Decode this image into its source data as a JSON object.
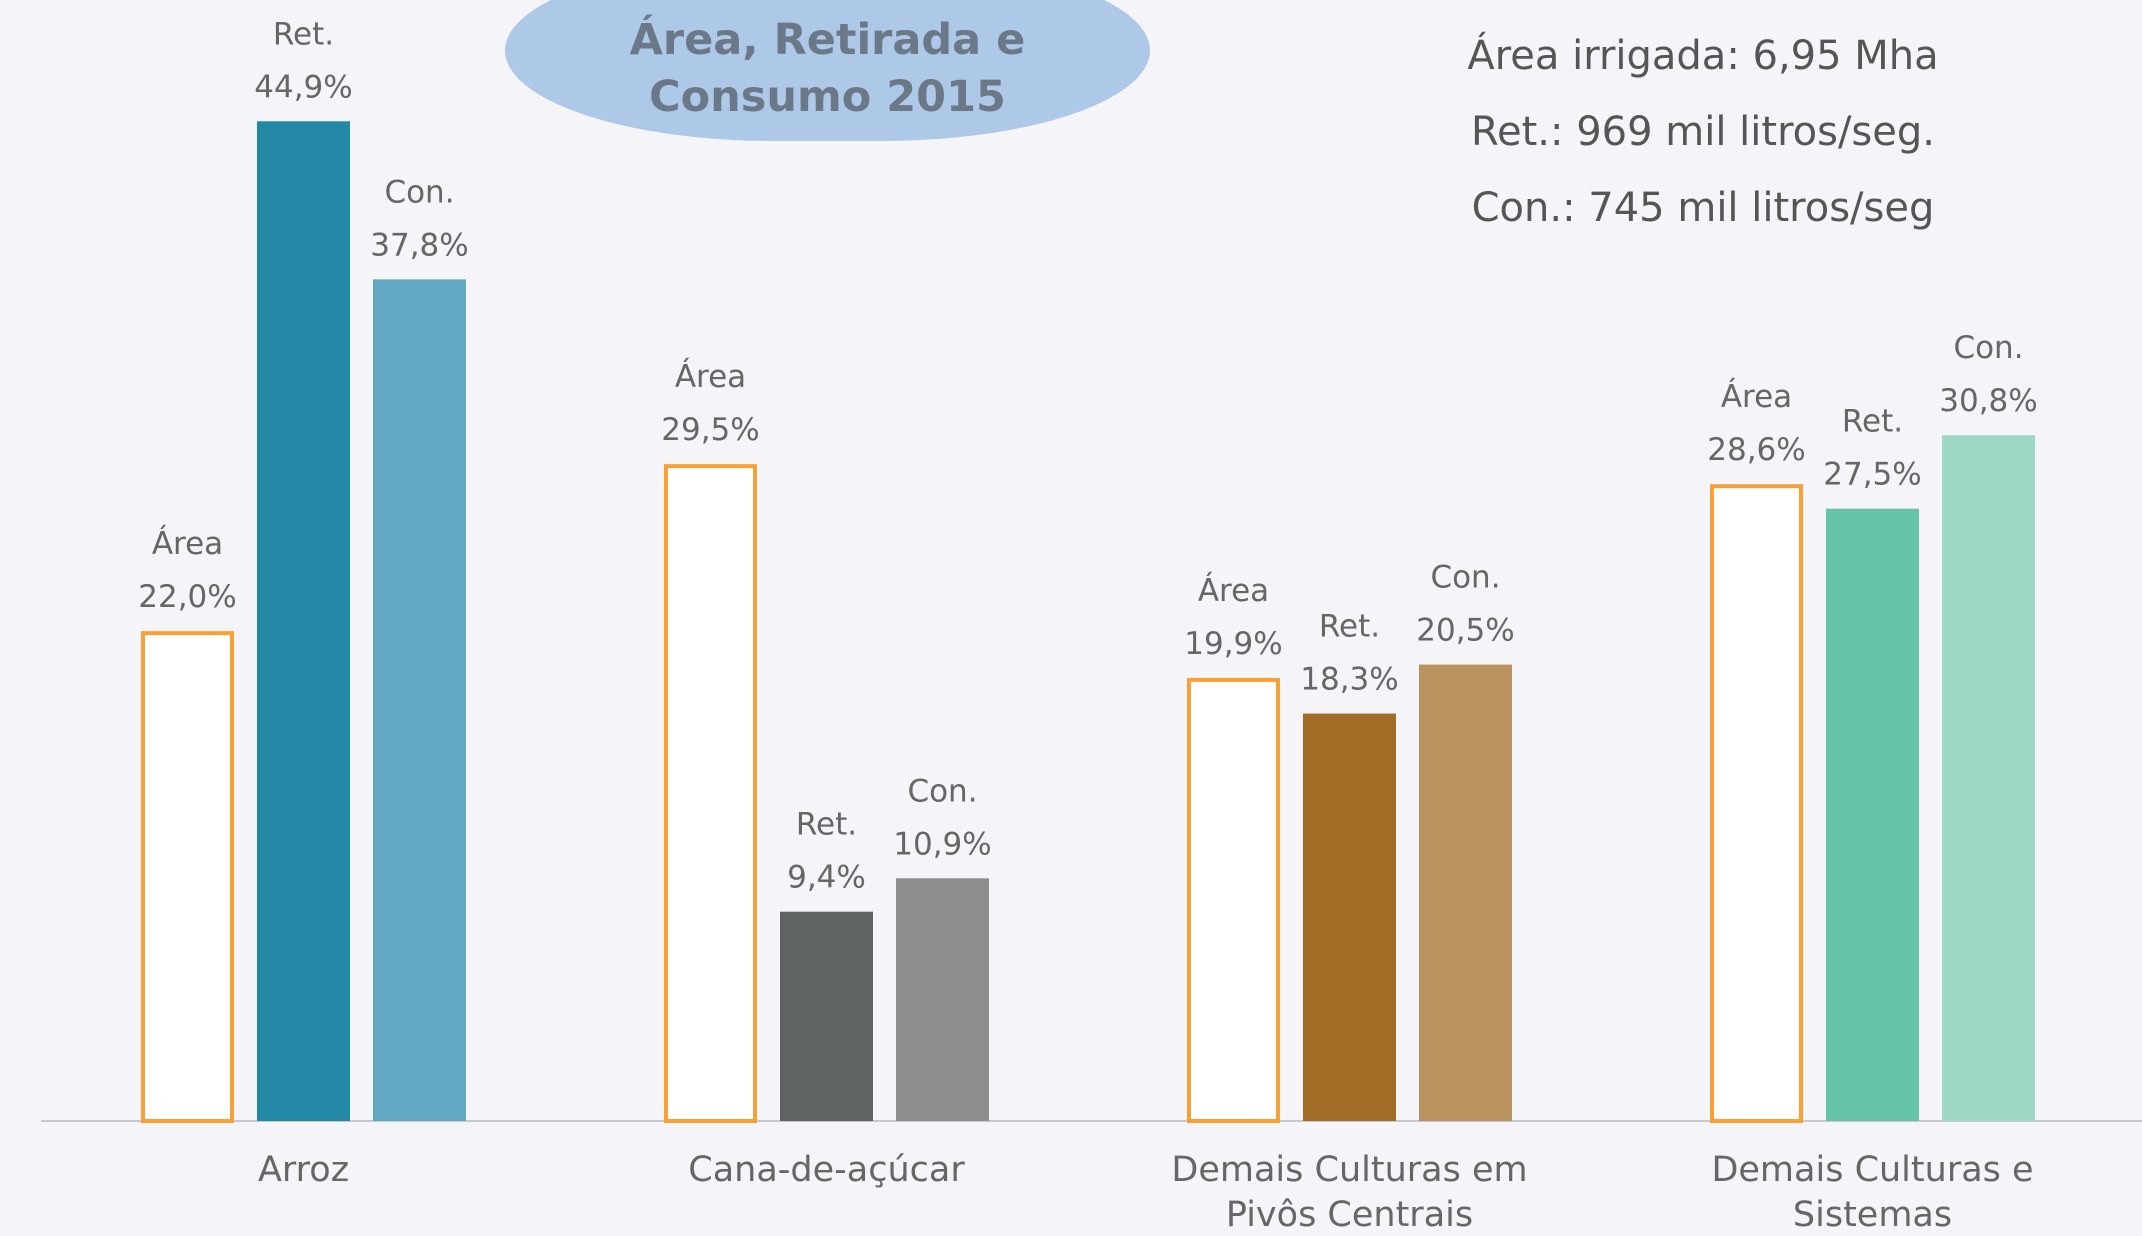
{
  "chart_data": {
    "type": "bar",
    "title": "Área, Retirada e Consumo 2015",
    "annotations": [
      "Área irrigada: 6,95 Mha",
      "Ret.: 969 mil litros/seg.",
      "Con.: 745 mil litros/seg"
    ],
    "categories": [
      "Arroz",
      "Cana-de-açúcar",
      "Demais Culturas em Pivôs Centrais",
      "Demais Culturas e Sistemas"
    ],
    "series": [
      {
        "name": "Área",
        "color": "#f7a035",
        "outline": true,
        "values": [
          22.0,
          29.5,
          19.9,
          28.6
        ],
        "value_labels": [
          "22,0%",
          "29,5%",
          "19,9%",
          "28,6%"
        ]
      },
      {
        "name": "Ret.",
        "colors": [
          "#2387a6",
          "#5f6363",
          "#a06c26",
          "#66c4a8"
        ],
        "values": [
          44.9,
          9.4,
          18.3,
          27.5
        ],
        "value_labels": [
          "44,9%",
          "9,4%",
          "18,3%",
          "27,5%"
        ]
      },
      {
        "name": "Con.",
        "colors": [
          "#63a8c2",
          "#8c8d8f",
          "#b9925f",
          "#9dd8c6"
        ],
        "values": [
          37.8,
          10.9,
          20.5,
          30.8
        ],
        "value_labels": [
          "37,8%",
          "10,9%",
          "20,5%",
          "30,8%"
        ]
      }
    ]
  }
}
